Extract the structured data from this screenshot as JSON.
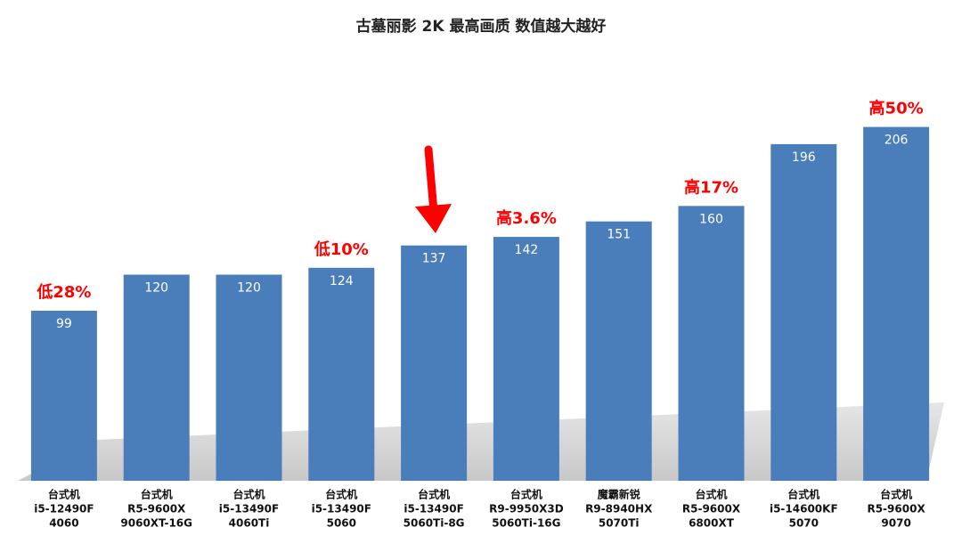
{
  "chart_data": {
    "type": "bar",
    "title": "古墓丽影 2K 最高画质 数值越大越好",
    "categories": [
      [
        "台式机",
        "i5-12490F",
        "4060"
      ],
      [
        "台式机",
        "R5-9600X",
        "9060XT-16G"
      ],
      [
        "台式机",
        "i5-13490F",
        "4060Ti"
      ],
      [
        "台式机",
        "i5-13490F",
        "5060"
      ],
      [
        "台式机",
        "i5-13490F",
        "5060Ti-8G"
      ],
      [
        "台式机",
        "R9-9950X3D",
        "5060Ti-16G"
      ],
      [
        "魔霸新锐",
        "R9-8940HX",
        "5070Ti"
      ],
      [
        "台式机",
        "R5-9600X",
        "6800XT"
      ],
      [
        "台式机",
        "i5-14600KF",
        "5070"
      ],
      [
        "台式机",
        "R5-9600X",
        "9070"
      ]
    ],
    "values": [
      99,
      120,
      120,
      124,
      137,
      142,
      151,
      160,
      196,
      206
    ],
    "annotations": [
      "低28%",
      null,
      null,
      "低10%",
      null,
      "高3.6%",
      null,
      "高17%",
      null,
      "高50%"
    ],
    "color": "#4a7ebb",
    "annotation_color": "#ff0000",
    "ylim": [
      0,
      240
    ]
  }
}
